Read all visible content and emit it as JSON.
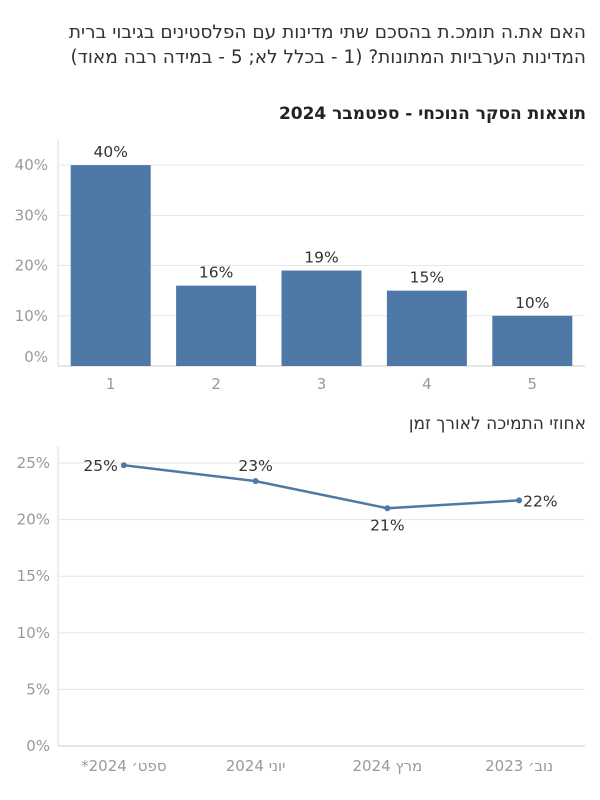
{
  "question": "האם את.ה תומכ.ת בהסכם שתי מדינות עם הפלסטינים בגיבוי ברית המדינות הערביות המתונות? (1 - בכלל לא; 5 - במידה רבה מאוד)",
  "subtitle": "תוצאות הסקר הנוכחי - ספטמבר 2024",
  "line_title": "אחוזי התמיכה לאורך זמן",
  "colors": {
    "bar": "#4e79a7",
    "line": "#4e79a7",
    "grid": "#e6e6e6"
  },
  "chart_data": [
    {
      "type": "bar",
      "categories": [
        "1",
        "2",
        "3",
        "4",
        "5"
      ],
      "values": [
        40,
        16,
        19,
        15,
        10
      ],
      "data_labels": [
        "40%",
        "16%",
        "19%",
        "15%",
        "10%"
      ],
      "yticks": [
        "0%",
        "10%",
        "20%",
        "30%",
        "40%"
      ],
      "ylim": [
        0,
        45
      ],
      "grid": true
    },
    {
      "type": "line",
      "categories": [
        "ספט׳ 2024*",
        "יוני 2024",
        "מרץ 2024",
        "נוב׳ 2023"
      ],
      "values": [
        24.8,
        23.4,
        21.0,
        21.7
      ],
      "data_labels": [
        "25%",
        "23%",
        "21%",
        "22%"
      ],
      "yticks": [
        "0%",
        "5%",
        "10%",
        "15%",
        "20%",
        "25%"
      ],
      "ylim": [
        0,
        26.5
      ],
      "grid": true
    }
  ]
}
